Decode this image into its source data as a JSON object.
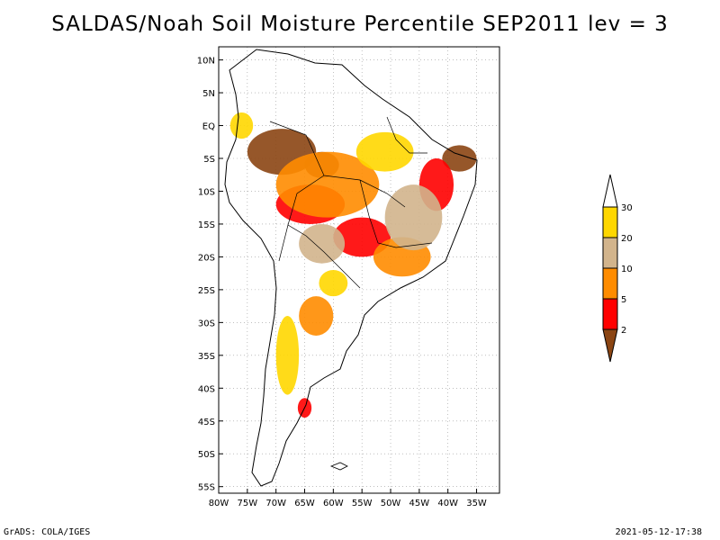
{
  "title": "SALDAS/Noah Soil Moisture Percentile SEP2011 lev = 3",
  "footer": {
    "left": "GrADS: COLA/IGES",
    "right": "2021-05-12-17:38"
  },
  "map": {
    "lon_range": [
      -80,
      -31
    ],
    "lat_range": [
      -56,
      12
    ],
    "lat_ticks": [
      {
        "value": 10,
        "label": "10N"
      },
      {
        "value": 5,
        "label": "5N"
      },
      {
        "value": 0,
        "label": "EQ"
      },
      {
        "value": -5,
        "label": "5S"
      },
      {
        "value": -10,
        "label": "10S"
      },
      {
        "value": -15,
        "label": "15S"
      },
      {
        "value": -20,
        "label": "20S"
      },
      {
        "value": -25,
        "label": "25S"
      },
      {
        "value": -30,
        "label": "30S"
      },
      {
        "value": -35,
        "label": "35S"
      },
      {
        "value": -40,
        "label": "40S"
      },
      {
        "value": -45,
        "label": "45S"
      },
      {
        "value": -50,
        "label": "50S"
      },
      {
        "value": -55,
        "label": "55S"
      }
    ],
    "lon_ticks": [
      {
        "value": -80,
        "label": "80W"
      },
      {
        "value": -75,
        "label": "75W"
      },
      {
        "value": -70,
        "label": "70W"
      },
      {
        "value": -65,
        "label": "65W"
      },
      {
        "value": -60,
        "label": "60W"
      },
      {
        "value": -55,
        "label": "55W"
      },
      {
        "value": -50,
        "label": "50W"
      },
      {
        "value": -45,
        "label": "45W"
      },
      {
        "value": -40,
        "label": "40W"
      },
      {
        "value": -35,
        "label": "35W"
      }
    ],
    "grid": true
  },
  "legend": {
    "bins": [
      {
        "label": "2",
        "color": "#8b4513"
      },
      {
        "label": "5",
        "color": "#ff0000"
      },
      {
        "label": "10",
        "color": "#ff8c00"
      },
      {
        "label": "20",
        "color": "#d2b48c"
      },
      {
        "label": "30",
        "color": "#ffd700"
      }
    ],
    "colors": [
      "#8b4513",
      "#ff0000",
      "#ff8c00",
      "#d2b48c",
      "#ffd700",
      "#ffffff"
    ]
  },
  "regions": [
    {
      "category": "below-2",
      "color": "#8b4513",
      "lon": -69,
      "lat": -4,
      "r_lon": 6,
      "r_lat": 3.5
    },
    {
      "category": "below-2",
      "color": "#8b4513",
      "lon": -62,
      "lat": -6,
      "r_lon": 3,
      "r_lat": 2
    },
    {
      "category": "below-2",
      "color": "#8b4513",
      "lon": -38,
      "lat": -5,
      "r_lon": 3,
      "r_lat": 2
    },
    {
      "category": "2-5",
      "color": "#ff0000",
      "lon": -64,
      "lat": -12,
      "r_lon": 6,
      "r_lat": 3
    },
    {
      "category": "2-5",
      "color": "#ff0000",
      "lon": -55,
      "lat": -17,
      "r_lon": 5,
      "r_lat": 3
    },
    {
      "category": "2-5",
      "color": "#ff0000",
      "lon": -42,
      "lat": -9,
      "r_lon": 3,
      "r_lat": 4
    },
    {
      "category": "2-5",
      "color": "#ff0000",
      "lon": -65,
      "lat": -43,
      "r_lon": 1.2,
      "r_lat": 1.5
    },
    {
      "category": "5-10",
      "color": "#ff8c00",
      "lon": -61,
      "lat": -9,
      "r_lon": 9,
      "r_lat": 5
    },
    {
      "category": "5-10",
      "color": "#ff8c00",
      "lon": -48,
      "lat": -20,
      "r_lon": 5,
      "r_lat": 3
    },
    {
      "category": "5-10",
      "color": "#ff8c00",
      "lon": -63,
      "lat": -29,
      "r_lon": 3,
      "r_lat": 3
    },
    {
      "category": "10-20",
      "color": "#d2b48c",
      "lon": -46,
      "lat": -14,
      "r_lon": 5,
      "r_lat": 5
    },
    {
      "category": "10-20",
      "color": "#d2b48c",
      "lon": -62,
      "lat": -18,
      "r_lon": 4,
      "r_lat": 3
    },
    {
      "category": "20-30",
      "color": "#ffd700",
      "lon": -51,
      "lat": -4,
      "r_lon": 5,
      "r_lat": 3
    },
    {
      "category": "20-30",
      "color": "#ffd700",
      "lon": -76,
      "lat": 0,
      "r_lon": 2,
      "r_lat": 2
    },
    {
      "category": "20-30",
      "color": "#ffd700",
      "lon": -68,
      "lat": -35,
      "r_lon": 2,
      "r_lat": 6
    },
    {
      "category": "20-30",
      "color": "#ffd700",
      "lon": -60,
      "lat": -24,
      "r_lon": 2.5,
      "r_lat": 2
    }
  ]
}
